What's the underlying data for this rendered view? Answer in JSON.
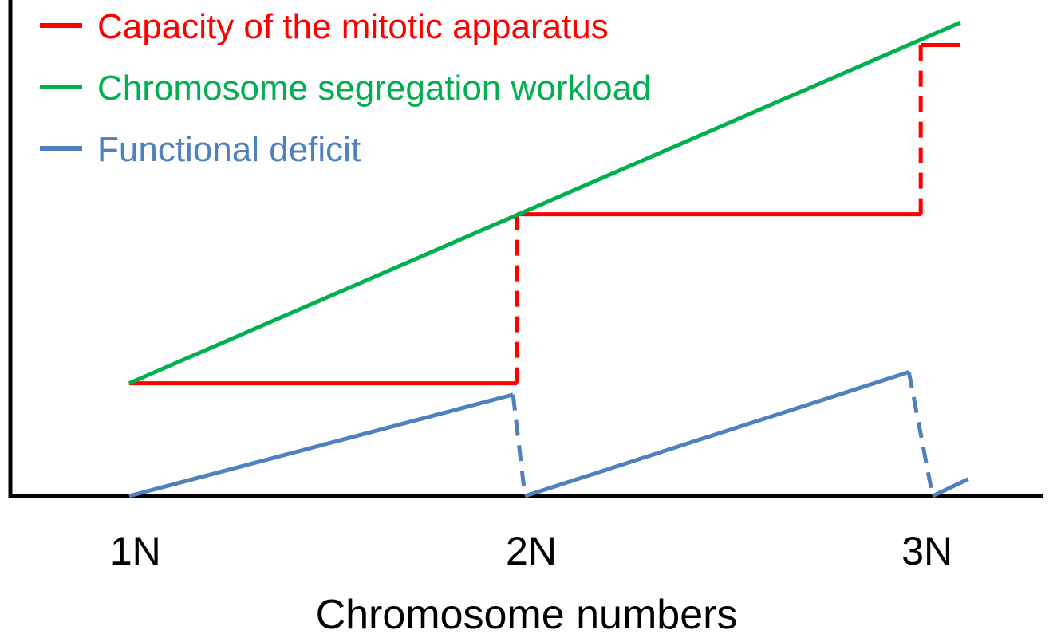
{
  "chart_data": {
    "type": "line",
    "title": "",
    "xlabel": "Chromosome numbers",
    "ylabel": "",
    "x_ticks": [
      {
        "value": 1,
        "label": "1N"
      },
      {
        "value": 2,
        "label": "2N"
      },
      {
        "value": 3,
        "label": "3N"
      }
    ],
    "xlim": [
      0.7,
      3.31
    ],
    "ylim": [
      0,
      4.4
    ],
    "grid": false,
    "legend_position": "top-left",
    "series": [
      {
        "name": "Capacity of the mitotic apparatus",
        "color": "#ff0000",
        "points": [
          [
            1.0,
            1.0
          ],
          [
            1.98,
            1.0
          ],
          [
            1.98,
            2.5
          ],
          [
            3.0,
            2.5
          ],
          [
            3.0,
            4.0
          ],
          [
            3.1,
            4.0
          ]
        ],
        "dashed_segments": [
          1,
          3
        ]
      },
      {
        "name": "Chromosome segregation workload",
        "color": "#00b050",
        "points": [
          [
            1.0,
            1.0
          ],
          [
            3.1,
            4.2
          ]
        ],
        "dashed_segments": []
      },
      {
        "name": "Functional deficit",
        "color": "#4f81bd",
        "points": [
          [
            1.0,
            0.0
          ],
          [
            1.97,
            0.9
          ],
          [
            2.0,
            0.0
          ],
          [
            2.97,
            1.1
          ],
          [
            3.03,
            0.0
          ],
          [
            3.12,
            0.15
          ]
        ],
        "dashed_segments": [
          1,
          3
        ]
      }
    ]
  }
}
